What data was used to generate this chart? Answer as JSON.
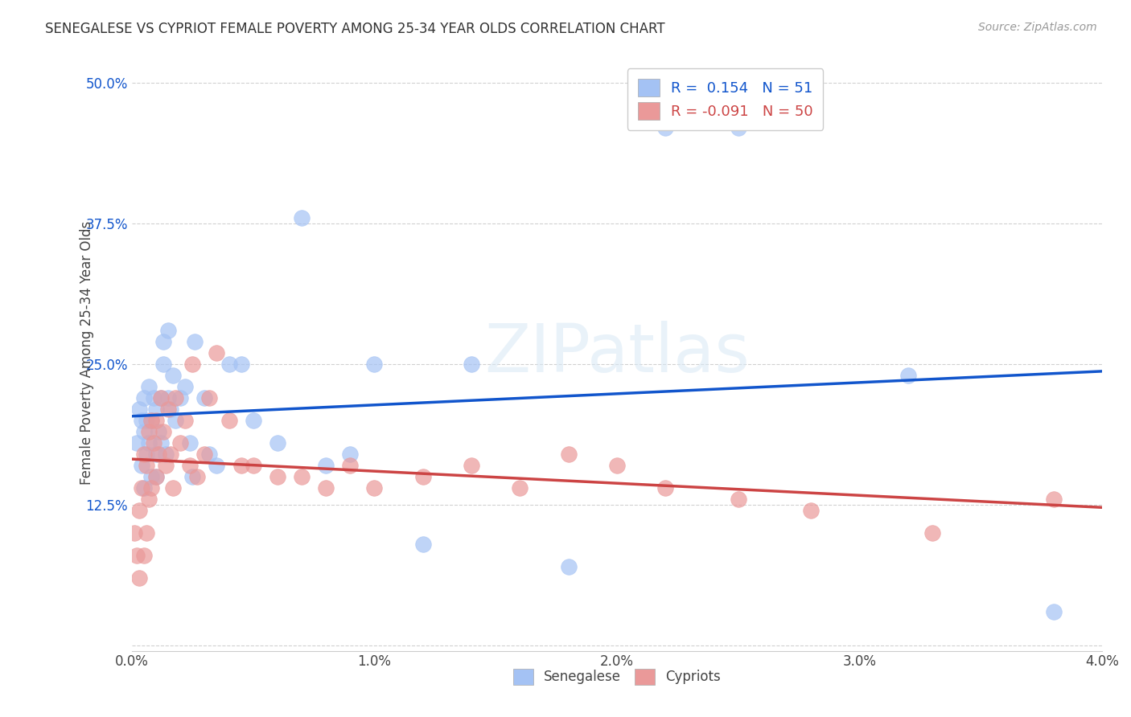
{
  "title": "SENEGALESE VS CYPRIOT FEMALE POVERTY AMONG 25-34 YEAR OLDS CORRELATION CHART",
  "source": "Source: ZipAtlas.com",
  "ylabel": "Female Poverty Among 25-34 Year Olds",
  "xlim": [
    0.0,
    0.04
  ],
  "ylim": [
    -0.005,
    0.525
  ],
  "yticks": [
    0.0,
    0.125,
    0.25,
    0.375,
    0.5
  ],
  "ytick_labels": [
    "",
    "12.5%",
    "25.0%",
    "37.5%",
    "50.0%"
  ],
  "xticks": [
    0.0,
    0.01,
    0.02,
    0.03,
    0.04
  ],
  "xtick_labels": [
    "0.0%",
    "1.0%",
    "2.0%",
    "3.0%",
    "4.0%"
  ],
  "senegalese_color": "#a4c2f4",
  "cypriot_color": "#ea9999",
  "line_senegalese_color": "#1155cc",
  "line_cypriot_color": "#cc4444",
  "R_senegalese": 0.154,
  "N_senegalese": 51,
  "R_cypriot": -0.091,
  "N_cypriot": 50,
  "background_color": "#ffffff",
  "grid_color": "#cccccc",
  "senegalese_x": [
    0.0002,
    0.0003,
    0.0004,
    0.0004,
    0.0005,
    0.0005,
    0.0005,
    0.0006,
    0.0006,
    0.0007,
    0.0007,
    0.0008,
    0.0008,
    0.0009,
    0.001,
    0.001,
    0.001,
    0.0011,
    0.0012,
    0.0012,
    0.0013,
    0.0013,
    0.0014,
    0.0015,
    0.0015,
    0.0016,
    0.0017,
    0.0018,
    0.002,
    0.0022,
    0.0024,
    0.0025,
    0.0026,
    0.003,
    0.0032,
    0.0035,
    0.004,
    0.0045,
    0.005,
    0.006,
    0.007,
    0.008,
    0.009,
    0.01,
    0.012,
    0.014,
    0.018,
    0.022,
    0.025,
    0.032,
    0.038
  ],
  "senegalese_y": [
    0.18,
    0.21,
    0.2,
    0.16,
    0.22,
    0.19,
    0.14,
    0.2,
    0.17,
    0.23,
    0.18,
    0.2,
    0.15,
    0.22,
    0.21,
    0.17,
    0.15,
    0.19,
    0.22,
    0.18,
    0.25,
    0.27,
    0.17,
    0.22,
    0.28,
    0.21,
    0.24,
    0.2,
    0.22,
    0.23,
    0.18,
    0.15,
    0.27,
    0.22,
    0.17,
    0.16,
    0.25,
    0.25,
    0.2,
    0.18,
    0.38,
    0.16,
    0.17,
    0.25,
    0.09,
    0.25,
    0.07,
    0.46,
    0.46,
    0.24,
    0.03
  ],
  "cypriot_x": [
    0.0001,
    0.0002,
    0.0003,
    0.0003,
    0.0004,
    0.0005,
    0.0005,
    0.0006,
    0.0006,
    0.0007,
    0.0007,
    0.0008,
    0.0008,
    0.0009,
    0.001,
    0.001,
    0.0011,
    0.0012,
    0.0013,
    0.0014,
    0.0015,
    0.0016,
    0.0017,
    0.0018,
    0.002,
    0.0022,
    0.0024,
    0.0025,
    0.0027,
    0.003,
    0.0032,
    0.0035,
    0.004,
    0.0045,
    0.005,
    0.006,
    0.007,
    0.008,
    0.009,
    0.01,
    0.012,
    0.014,
    0.016,
    0.018,
    0.02,
    0.022,
    0.025,
    0.028,
    0.033,
    0.038
  ],
  "cypriot_y": [
    0.1,
    0.08,
    0.06,
    0.12,
    0.14,
    0.08,
    0.17,
    0.16,
    0.1,
    0.19,
    0.13,
    0.2,
    0.14,
    0.18,
    0.15,
    0.2,
    0.17,
    0.22,
    0.19,
    0.16,
    0.21,
    0.17,
    0.14,
    0.22,
    0.18,
    0.2,
    0.16,
    0.25,
    0.15,
    0.17,
    0.22,
    0.26,
    0.2,
    0.16,
    0.16,
    0.15,
    0.15,
    0.14,
    0.16,
    0.14,
    0.15,
    0.16,
    0.14,
    0.17,
    0.16,
    0.14,
    0.13,
    0.12,
    0.1,
    0.13
  ]
}
